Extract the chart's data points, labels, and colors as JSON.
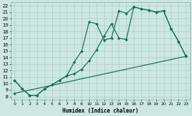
{
  "xlabel": "Humidex (Indice chaleur)",
  "bg_color": "#cce8e0",
  "grid_color": "#aaccc4",
  "line_color": "#1a6b5a",
  "xlim": [
    -0.5,
    23.5
  ],
  "ylim": [
    7.5,
    22.5
  ],
  "xticks": [
    0,
    1,
    2,
    3,
    4,
    5,
    6,
    7,
    8,
    9,
    10,
    11,
    12,
    13,
    14,
    15,
    16,
    17,
    18,
    19,
    20,
    21,
    22,
    23
  ],
  "yticks": [
    8,
    9,
    10,
    11,
    12,
    13,
    14,
    15,
    16,
    17,
    18,
    19,
    20,
    21,
    22
  ],
  "l1x": [
    0,
    1,
    2,
    3,
    4,
    5,
    6,
    7,
    8,
    9,
    10,
    11,
    12,
    13,
    14,
    15,
    16,
    17,
    18,
    19,
    20,
    21,
    22,
    23
  ],
  "l1y": [
    10.5,
    9.2,
    8.2,
    8.2,
    9.2,
    9.8,
    10.5,
    11.2,
    13.3,
    15.0,
    19.5,
    19.2,
    16.7,
    17.0,
    21.2,
    20.8,
    21.8,
    21.5,
    21.3,
    21.0,
    21.2,
    18.5,
    16.5,
    14.2
  ],
  "l2x": [
    0,
    1,
    2,
    3,
    4,
    5,
    6,
    7,
    8,
    9,
    10,
    11,
    12,
    13,
    14,
    15,
    16,
    17,
    18,
    19,
    20,
    21,
    22,
    23
  ],
  "l2y": [
    10.5,
    9.2,
    8.2,
    8.2,
    9.2,
    9.8,
    10.5,
    11.2,
    11.5,
    12.2,
    13.5,
    15.2,
    17.3,
    19.2,
    17.0,
    16.8,
    21.8,
    21.5,
    21.3,
    21.0,
    21.2,
    18.5,
    16.5,
    14.2
  ],
  "l3x": [
    0,
    23
  ],
  "l3y": [
    8.5,
    14.2
  ],
  "markersize": 2.0,
  "linewidth": 0.9
}
